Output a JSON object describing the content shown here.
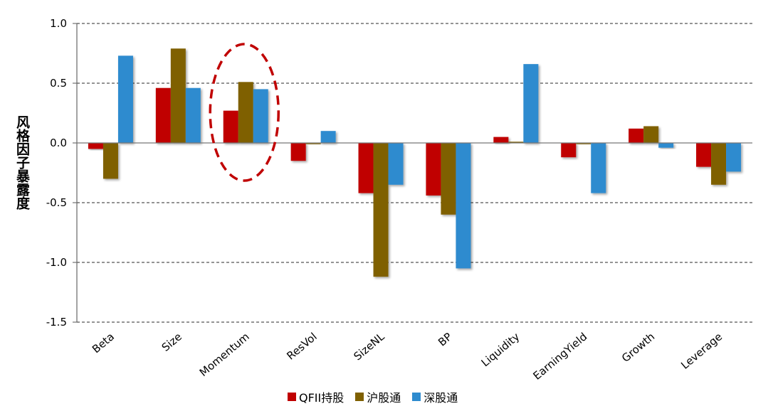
{
  "chart_data": {
    "type": "bar",
    "title": "",
    "xlabel": "",
    "ylabel": "风格因子暴露度",
    "ylim": [
      -1.5,
      1.0
    ],
    "yticks": [
      1.0,
      0.5,
      0.0,
      -0.5,
      -1.0,
      -1.5
    ],
    "ytick_labels": [
      "1.0",
      "0.5",
      "0.0",
      "-0.5",
      "-1.0",
      "-1.5"
    ],
    "grid": "dashed horizontal",
    "legend_position": "bottom",
    "categories": [
      "Beta",
      "Size",
      "Momentum",
      "ResVol",
      "SizeNL",
      "BP",
      "Liquidity",
      "EarningYield",
      "Growth",
      "Leverage"
    ],
    "series": [
      {
        "name": "QFII持股",
        "color": "#C00000",
        "values": [
          -0.05,
          0.46,
          0.27,
          -0.15,
          -0.42,
          -0.44,
          0.05,
          -0.12,
          0.12,
          -0.2
        ]
      },
      {
        "name": "沪股通",
        "color": "#7F6000",
        "values": [
          -0.3,
          0.79,
          0.51,
          -0.01,
          -1.12,
          -0.6,
          0.01,
          -0.01,
          0.14,
          -0.35
        ]
      },
      {
        "name": "深股通",
        "color": "#2E8BCF",
        "values": [
          0.73,
          0.46,
          0.45,
          0.1,
          -0.35,
          -1.05,
          0.66,
          -0.42,
          -0.04,
          -0.24
        ]
      }
    ],
    "annotation": {
      "type": "dashed-ellipse",
      "target_category": "Momentum",
      "color": "#C00000"
    }
  }
}
